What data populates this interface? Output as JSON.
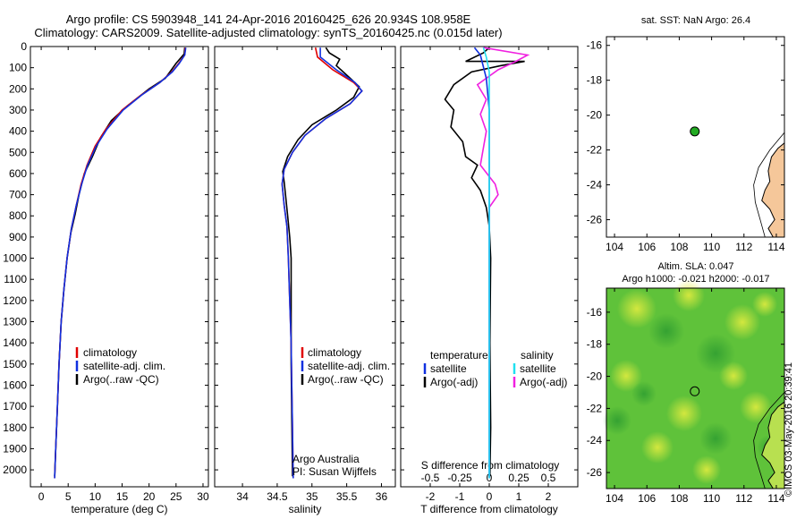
{
  "title_line1": "Argo profile: CS 5903948_141 24-Apr-2016 20160425_626 20.934S 108.958E",
  "title_line2": "Climatology: CARS2009. Satellite-adjusted climatology: synTS_20160425.nc (0.015d later)",
  "timestamp": "©IMOS 03-May-2016 20:39:41",
  "colors": {
    "climatology": "#e00000",
    "satellite": "#1030e0",
    "argo": "#000000",
    "sal_satellite": "#20e0f0",
    "sal_argo": "#f020e0",
    "land": "#f5c79a",
    "marker": "#22aa22"
  },
  "chart_data": [
    {
      "type": "line",
      "xlabel": "temperature (deg C)",
      "xlim": [
        -2,
        31
      ],
      "xticks": [
        0,
        5,
        10,
        15,
        20,
        25,
        30
      ],
      "ylim": [
        2080,
        0
      ],
      "yticks": [
        0,
        100,
        200,
        300,
        400,
        500,
        600,
        700,
        800,
        900,
        1000,
        1100,
        1200,
        1300,
        1400,
        1500,
        1600,
        1700,
        1800,
        1900,
        2000
      ],
      "legend": [
        "climatology",
        "satellite-adj. clim.",
        "Argo(..raw -QC)"
      ],
      "series": [
        {
          "name": "climatology",
          "points": [
            [
              26.7,
              5
            ],
            [
              26.6,
              40
            ],
            [
              25.5,
              80
            ],
            [
              24.2,
              120
            ],
            [
              22.0,
              170
            ],
            [
              18.5,
              230
            ],
            [
              15.0,
              300
            ],
            [
              12.0,
              390
            ],
            [
              10.0,
              470
            ],
            [
              8.5,
              560
            ],
            [
              7.4,
              650
            ],
            [
              6.5,
              750
            ],
            [
              5.6,
              860
            ],
            [
              4.8,
              1000
            ],
            [
              4.2,
              1150
            ],
            [
              3.7,
              1300
            ],
            [
              3.3,
              1500
            ],
            [
              3.0,
              1700
            ],
            [
              2.7,
              1900
            ],
            [
              2.5,
              2040
            ]
          ]
        },
        {
          "name": "satellite-adj. clim.",
          "points": [
            [
              26.8,
              5
            ],
            [
              26.6,
              40
            ],
            [
              25.6,
              80
            ],
            [
              24.3,
              120
            ],
            [
              22.0,
              170
            ],
            [
              18.6,
              230
            ],
            [
              15.2,
              300
            ],
            [
              12.2,
              390
            ],
            [
              10.2,
              470
            ],
            [
              8.6,
              560
            ],
            [
              7.5,
              650
            ],
            [
              6.5,
              750
            ],
            [
              5.6,
              860
            ],
            [
              4.8,
              1000
            ],
            [
              4.2,
              1150
            ],
            [
              3.7,
              1300
            ],
            [
              3.3,
              1500
            ],
            [
              3.0,
              1700
            ],
            [
              2.7,
              1900
            ],
            [
              2.5,
              2040
            ]
          ]
        },
        {
          "name": "Argo(..raw -QC)",
          "points": [
            [
              26.6,
              5
            ],
            [
              26.5,
              35
            ],
            [
              25.0,
              80
            ],
            [
              23.0,
              150
            ],
            [
              20.0,
              200
            ],
            [
              16.0,
              280
            ],
            [
              13.0,
              350
            ],
            [
              11.0,
              430
            ],
            [
              9.5,
              520
            ],
            [
              8.0,
              600
            ],
            [
              7.0,
              700
            ],
            [
              6.3,
              790
            ],
            [
              5.5,
              880
            ],
            [
              4.8,
              1000
            ],
            [
              4.2,
              1150
            ],
            [
              3.7,
              1300
            ],
            [
              3.3,
              1500
            ],
            [
              3.0,
              1700
            ],
            [
              2.7,
              1900
            ],
            [
              2.5,
              2030
            ]
          ]
        }
      ]
    },
    {
      "type": "line",
      "xlabel": "salinity",
      "xlim": [
        33.6,
        36.2
      ],
      "xticks": [
        34,
        34.5,
        35,
        35.5,
        36
      ],
      "ylim": [
        2080,
        0
      ],
      "legend": [
        "climatology",
        "satellite-adj. clim.",
        "Argo(..raw -QC)"
      ],
      "annotation": [
        "Argo Australia",
        "PI: Susan Wijffels"
      ],
      "series": [
        {
          "name": "climatology",
          "points": [
            [
              35.05,
              5
            ],
            [
              35.08,
              50
            ],
            [
              35.3,
              110
            ],
            [
              35.6,
              170
            ],
            [
              35.72,
              210
            ],
            [
              35.55,
              270
            ],
            [
              35.2,
              340
            ],
            [
              34.9,
              420
            ],
            [
              34.72,
              500
            ],
            [
              34.6,
              580
            ],
            [
              34.57,
              650
            ],
            [
              34.6,
              750
            ],
            [
              34.64,
              850
            ],
            [
              34.66,
              1000
            ],
            [
              34.68,
              1200
            ],
            [
              34.7,
              1400
            ],
            [
              34.71,
              1600
            ],
            [
              34.72,
              1800
            ],
            [
              34.73,
              2040
            ]
          ]
        },
        {
          "name": "satellite-adj. clim.",
          "points": [
            [
              35.12,
              5
            ],
            [
              35.12,
              50
            ],
            [
              35.35,
              110
            ],
            [
              35.62,
              170
            ],
            [
              35.72,
              210
            ],
            [
              35.55,
              270
            ],
            [
              35.2,
              340
            ],
            [
              34.9,
              420
            ],
            [
              34.72,
              500
            ],
            [
              34.6,
              580
            ],
            [
              34.57,
              650
            ],
            [
              34.6,
              750
            ],
            [
              34.64,
              850
            ],
            [
              34.66,
              1000
            ],
            [
              34.68,
              1200
            ],
            [
              34.7,
              1400
            ],
            [
              34.71,
              1600
            ],
            [
              34.72,
              1800
            ],
            [
              34.73,
              2040
            ]
          ]
        },
        {
          "name": "Argo(..raw -QC)",
          "points": [
            [
              35.2,
              5
            ],
            [
              35.25,
              30
            ],
            [
              35.4,
              60
            ],
            [
              35.35,
              90
            ],
            [
              35.55,
              150
            ],
            [
              35.68,
              190
            ],
            [
              35.6,
              240
            ],
            [
              35.35,
              300
            ],
            [
              35.0,
              370
            ],
            [
              34.8,
              440
            ],
            [
              34.65,
              520
            ],
            [
              34.58,
              590
            ],
            [
              34.6,
              640
            ],
            [
              34.62,
              700
            ],
            [
              34.65,
              800
            ],
            [
              34.68,
              900
            ],
            [
              34.7,
              1000
            ],
            [
              34.7,
              1500
            ],
            [
              34.72,
              2030
            ]
          ]
        }
      ]
    },
    {
      "type": "line",
      "xlabel": "T difference from climatology",
      "x2label": "S difference from climatology",
      "xlim": [
        -3,
        3
      ],
      "xticks": [
        -2,
        -1,
        0,
        1,
        2
      ],
      "x2ticks": [
        "-0.5",
        "-0.25",
        "0",
        "0.25",
        "0.5"
      ],
      "legend_temperature": [
        "temperature",
        "satellite",
        "Argo(-adj)"
      ],
      "legend_salinity": [
        "salinity",
        "satellite",
        "Argo(-adj)"
      ],
      "series": [
        {
          "name": "temperature satellite",
          "points": [
            [
              -0.5,
              5
            ],
            [
              -0.3,
              40
            ],
            [
              -0.1,
              150
            ],
            [
              0.0,
              300
            ],
            [
              0.0,
              500
            ],
            [
              0.0,
              800
            ],
            [
              0.0,
              2040
            ]
          ]
        },
        {
          "name": "temperature Argo(-adj)",
          "points": [
            [
              0.0,
              5
            ],
            [
              -0.2,
              30
            ],
            [
              -0.8,
              70
            ],
            [
              1.2,
              70
            ],
            [
              0.4,
              90
            ],
            [
              -0.6,
              120
            ],
            [
              -1.2,
              180
            ],
            [
              -1.5,
              250
            ],
            [
              -1.2,
              300
            ],
            [
              -1.3,
              380
            ],
            [
              -0.9,
              450
            ],
            [
              -0.8,
              520
            ],
            [
              -0.4,
              560
            ],
            [
              -0.6,
              620
            ],
            [
              -0.3,
              680
            ],
            [
              -0.1,
              760
            ],
            [
              0.0,
              850
            ],
            [
              0.05,
              1000
            ],
            [
              0.02,
              1400
            ],
            [
              0.05,
              1800
            ],
            [
              0.02,
              2030
            ]
          ]
        },
        {
          "name": "salinity satellite",
          "points": [
            [
              -0.2,
              5
            ],
            [
              -0.1,
              50
            ],
            [
              0.0,
              120
            ],
            [
              0.0,
              400
            ],
            [
              0.0,
              800
            ],
            [
              0.0,
              2040
            ]
          ]
        },
        {
          "name": "salinity Argo(-adj)",
          "points": [
            [
              -0.2,
              5
            ],
            [
              1.3,
              40
            ],
            [
              0.9,
              70
            ],
            [
              0.3,
              110
            ],
            [
              -0.4,
              180
            ],
            [
              -0.1,
              250
            ],
            [
              -0.3,
              320
            ],
            [
              -0.1,
              400
            ],
            [
              -0.2,
              480
            ],
            [
              -0.3,
              560
            ],
            [
              0.2,
              650
            ],
            [
              0.3,
              700
            ],
            [
              0.0,
              760
            ],
            [
              0.0,
              850
            ],
            [
              0.0,
              1000
            ],
            [
              0.0,
              2030
            ]
          ]
        }
      ]
    },
    {
      "type": "scatter",
      "title": "sat. SST: NaN Argo: 26.4",
      "xlim": [
        103.5,
        114.5
      ],
      "ylim": [
        -27,
        -15.5
      ],
      "xticks": [
        104,
        106,
        108,
        110,
        112,
        114
      ],
      "yticks": [
        -16,
        -18,
        -20,
        -22,
        -24,
        -26
      ],
      "points": [
        {
          "lon": 108.958,
          "lat": -20.934
        }
      ]
    },
    {
      "type": "heatmap",
      "title": "Altim. SLA: 0.047",
      "subtitle": "Argo h1000: -0.021 h2000: -0.017",
      "xlim": [
        103.5,
        114.5
      ],
      "ylim": [
        -27,
        -14.5
      ],
      "xticks": [
        104,
        106,
        108,
        110,
        112,
        114
      ],
      "yticks": [
        -16,
        -18,
        -20,
        -22,
        -24,
        -26
      ],
      "points": [
        {
          "lon": 108.958,
          "lat": -20.934
        }
      ]
    }
  ]
}
